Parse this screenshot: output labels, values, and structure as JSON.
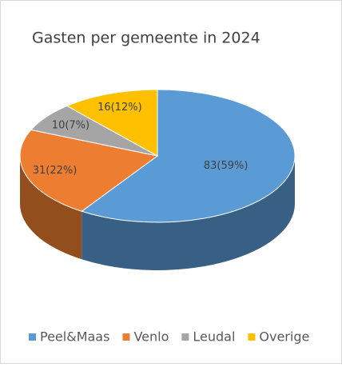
{
  "chart_data": {
    "type": "pie",
    "title": "Gasten per gemeente in 2024",
    "categories": [
      "Peel&Maas",
      "Venlo",
      "Leudal",
      "Overige"
    ],
    "values": [
      83,
      31,
      10,
      16
    ],
    "value_labels": [
      "83(59%)",
      "31(22%)",
      "10(7%)",
      "16(12%)"
    ],
    "colors": [
      "#5b9bd5",
      "#ed7d31",
      "#a5a5a5",
      "#ffc000"
    ],
    "legend": "bottom"
  }
}
